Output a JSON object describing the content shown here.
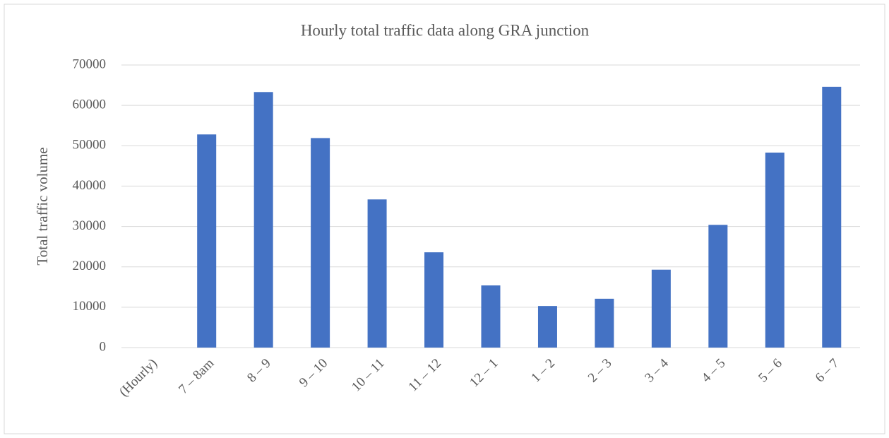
{
  "chart_data": {
    "type": "bar",
    "title": "Hourly total traffic data along GRA junction",
    "ylabel": "Total traffic volume",
    "categories": [
      "(Hourly)",
      "7 – 8am",
      "8 – 9",
      "9 – 10",
      "10 – 11",
      "11 – 12",
      "12 – 1",
      "1 – 2",
      "2 – 3",
      "3 – 4",
      "4 – 5",
      "5 – 6",
      "6 – 7"
    ],
    "values": [
      null,
      52800,
      63300,
      51900,
      36700,
      23600,
      15400,
      10300,
      12100,
      19300,
      30400,
      48300,
      64600
    ],
    "color": "#4472c4",
    "ylim": [
      0,
      70000
    ],
    "yticks": [
      0,
      10000,
      20000,
      30000,
      40000,
      50000,
      60000,
      70000
    ],
    "grid": true
  }
}
